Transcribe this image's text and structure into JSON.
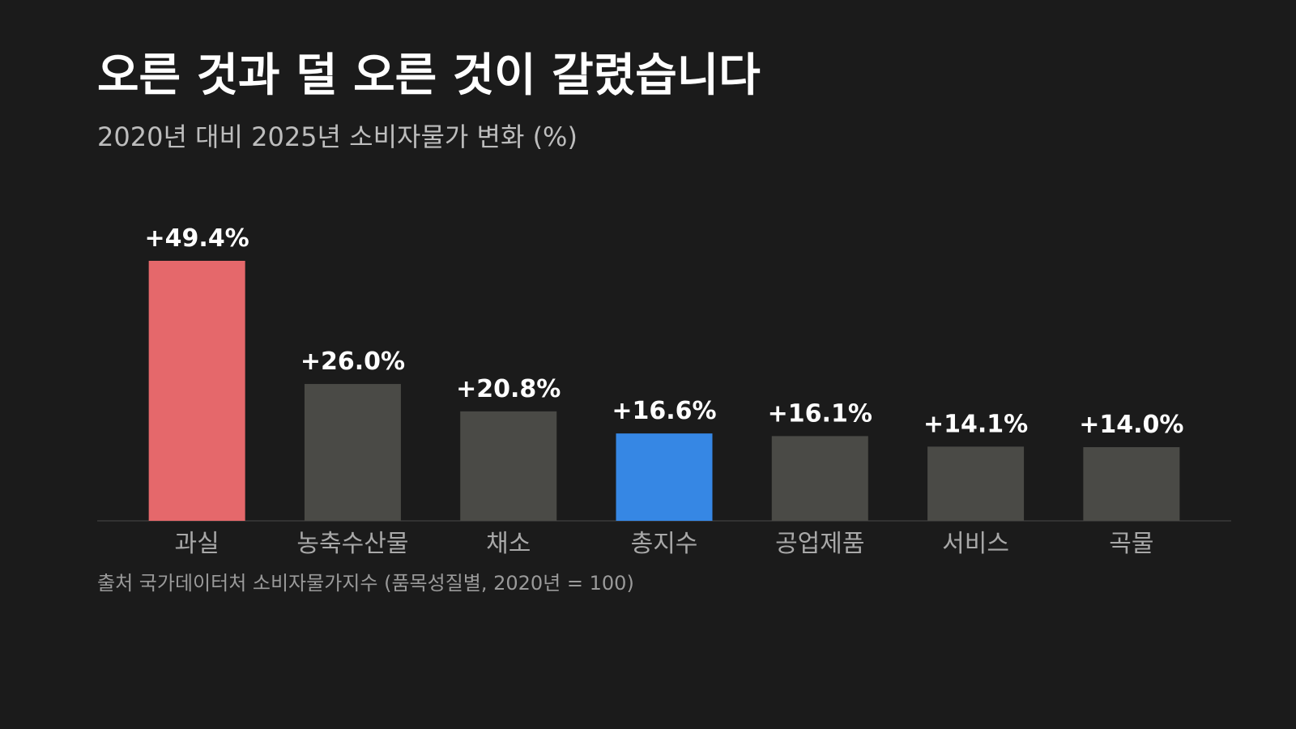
{
  "chart_data": {
    "type": "bar",
    "title": "오른 것과 덜 오른 것이 갈렸습니다",
    "subtitle": "2020년 대비 2025년 소비자물가 변화 (%)",
    "categories": [
      "과실",
      "농축수산물",
      "채소",
      "총지수",
      "공업제품",
      "서비스",
      "곡물"
    ],
    "values": [
      49.4,
      26.0,
      20.8,
      16.6,
      16.1,
      14.1,
      14.0
    ],
    "value_labels": [
      "+49.4%",
      "+26.0%",
      "+20.8%",
      "+16.6%",
      "+16.1%",
      "+14.1%",
      "+14.0%"
    ],
    "colors": [
      "#e5686b",
      "#4a4a46",
      "#4a4a46",
      "#3687e4",
      "#4a4a46",
      "#4a4a46",
      "#4a4a46"
    ],
    "source": "출처 국가데이터처 소비자물가지수 (품목성질별, 2020년 = 100)"
  }
}
